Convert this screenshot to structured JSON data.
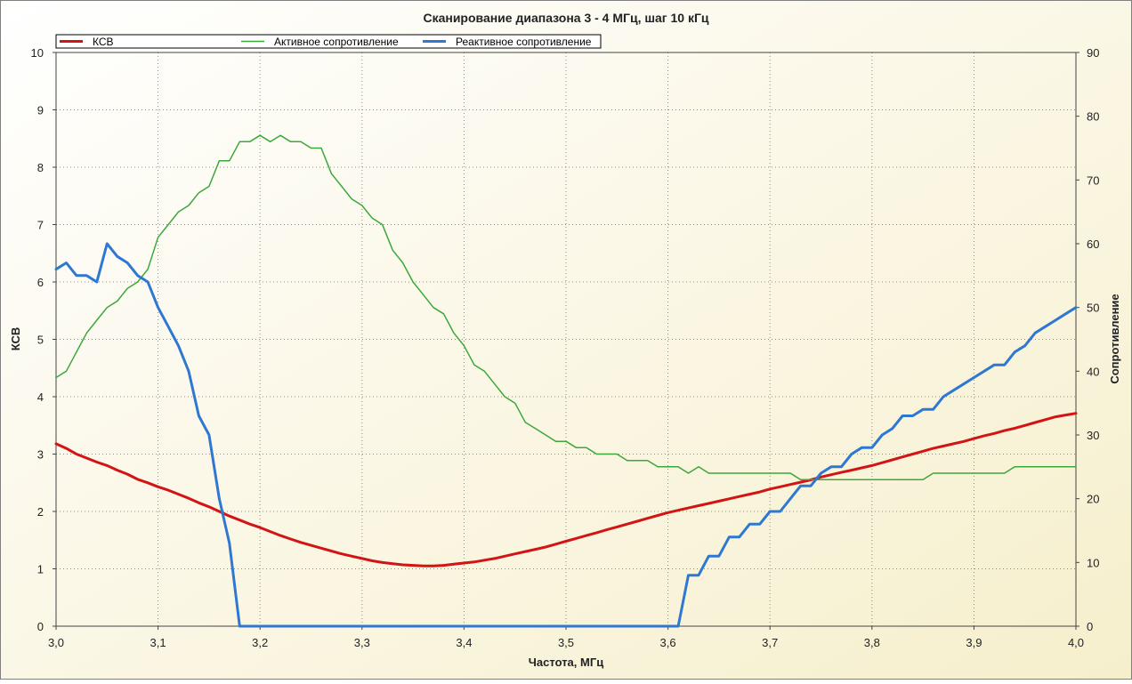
{
  "colors": {
    "bg_start": "#ffffff",
    "bg_end": "#f6efcc",
    "grid": "#8c8c8c",
    "swr": "#d21414",
    "active": "#3aa83a",
    "reactive": "#2f78d2"
  },
  "chart_data": {
    "type": "line",
    "title": "Сканирование диапазона 3 - 4 МГц, шаг 10 кГц",
    "xlabel": "Частота, МГц",
    "ylabel_left": "КСВ",
    "ylabel_right": "Сопротивление",
    "xlim": [
      3.0,
      4.0
    ],
    "ylim_left": [
      0,
      10
    ],
    "ylim_right": [
      0,
      90
    ],
    "x_ticks": [
      "3,0",
      "3,1",
      "3,2",
      "3,3",
      "3,4",
      "3,5",
      "3,6",
      "3,7",
      "3,8",
      "3,9",
      "4,0"
    ],
    "y_left_ticks": [
      "0",
      "1",
      "2",
      "3",
      "4",
      "5",
      "6",
      "7",
      "8",
      "9",
      "10"
    ],
    "y_right_ticks": [
      "0",
      "10",
      "20",
      "30",
      "40",
      "50",
      "60",
      "70",
      "80",
      "90"
    ],
    "grid": true,
    "legend_position": "top",
    "series": [
      {
        "name": "КСВ",
        "axis": "left",
        "x": [
          3.0,
          3.01,
          3.02,
          3.03,
          3.04,
          3.05,
          3.06,
          3.07,
          3.08,
          3.09,
          3.1,
          3.11,
          3.12,
          3.13,
          3.14,
          3.15,
          3.16,
          3.17,
          3.18,
          3.19,
          3.2,
          3.21,
          3.22,
          3.23,
          3.24,
          3.25,
          3.26,
          3.27,
          3.28,
          3.29,
          3.3,
          3.31,
          3.32,
          3.33,
          3.34,
          3.35,
          3.36,
          3.37,
          3.38,
          3.39,
          3.4,
          3.41,
          3.42,
          3.43,
          3.44,
          3.45,
          3.46,
          3.47,
          3.48,
          3.49,
          3.5,
          3.51,
          3.52,
          3.53,
          3.54,
          3.55,
          3.56,
          3.57,
          3.58,
          3.59,
          3.6,
          3.61,
          3.62,
          3.63,
          3.64,
          3.65,
          3.66,
          3.67,
          3.68,
          3.69,
          3.7,
          3.71,
          3.72,
          3.73,
          3.74,
          3.75,
          3.76,
          3.77,
          3.78,
          3.79,
          3.8,
          3.81,
          3.82,
          3.83,
          3.84,
          3.85,
          3.86,
          3.87,
          3.88,
          3.89,
          3.9,
          3.91,
          3.92,
          3.93,
          3.94,
          3.95,
          3.96,
          3.97,
          3.98,
          3.99,
          4.0
        ],
        "y": [
          3.18,
          3.1,
          3.0,
          2.93,
          2.86,
          2.8,
          2.72,
          2.65,
          2.56,
          2.5,
          2.43,
          2.37,
          2.3,
          2.23,
          2.15,
          2.08,
          2.0,
          1.92,
          1.85,
          1.78,
          1.72,
          1.65,
          1.58,
          1.52,
          1.46,
          1.41,
          1.36,
          1.31,
          1.26,
          1.22,
          1.18,
          1.14,
          1.11,
          1.09,
          1.07,
          1.06,
          1.05,
          1.05,
          1.06,
          1.08,
          1.1,
          1.12,
          1.15,
          1.18,
          1.22,
          1.26,
          1.3,
          1.34,
          1.38,
          1.43,
          1.48,
          1.53,
          1.58,
          1.63,
          1.68,
          1.73,
          1.78,
          1.83,
          1.88,
          1.93,
          1.98,
          2.02,
          2.06,
          2.1,
          2.14,
          2.18,
          2.22,
          2.26,
          2.3,
          2.34,
          2.39,
          2.43,
          2.47,
          2.51,
          2.55,
          2.6,
          2.64,
          2.68,
          2.72,
          2.76,
          2.8,
          2.85,
          2.9,
          2.95,
          3.0,
          3.05,
          3.1,
          3.14,
          3.18,
          3.22,
          3.27,
          3.32,
          3.36,
          3.41,
          3.45,
          3.5,
          3.55,
          3.6,
          3.65,
          3.68,
          3.71
        ]
      },
      {
        "name": "Активное сопротивление",
        "axis": "right",
        "x": [
          3.0,
          3.01,
          3.02,
          3.03,
          3.04,
          3.05,
          3.06,
          3.07,
          3.08,
          3.09,
          3.1,
          3.11,
          3.12,
          3.13,
          3.14,
          3.15,
          3.16,
          3.17,
          3.18,
          3.19,
          3.2,
          3.21,
          3.22,
          3.23,
          3.24,
          3.25,
          3.26,
          3.27,
          3.28,
          3.29,
          3.3,
          3.31,
          3.32,
          3.33,
          3.34,
          3.35,
          3.36,
          3.37,
          3.38,
          3.39,
          3.4,
          3.41,
          3.42,
          3.43,
          3.44,
          3.45,
          3.46,
          3.47,
          3.48,
          3.49,
          3.5,
          3.51,
          3.52,
          3.53,
          3.54,
          3.55,
          3.56,
          3.57,
          3.58,
          3.59,
          3.6,
          3.61,
          3.62,
          3.63,
          3.64,
          3.65,
          3.66,
          3.67,
          3.68,
          3.69,
          3.7,
          3.71,
          3.72,
          3.73,
          3.74,
          3.75,
          3.76,
          3.77,
          3.78,
          3.79,
          3.8,
          3.81,
          3.82,
          3.83,
          3.84,
          3.85,
          3.86,
          3.87,
          3.88,
          3.89,
          3.9,
          3.91,
          3.92,
          3.93,
          3.94,
          3.95,
          3.96,
          3.97,
          3.98,
          3.99,
          4.0
        ],
        "y": [
          39,
          40,
          43,
          46,
          48,
          50,
          51,
          53,
          54,
          56,
          61,
          63,
          65,
          66,
          68,
          69,
          73,
          73,
          76,
          76,
          77,
          76,
          77,
          76,
          76,
          75,
          75,
          71,
          69,
          67,
          66,
          64,
          63,
          59,
          57,
          54,
          52,
          50,
          49,
          46,
          44,
          41,
          40,
          38,
          36,
          35,
          32,
          31,
          30,
          29,
          29,
          28,
          28,
          27,
          27,
          27,
          26,
          26,
          26,
          25,
          25,
          25,
          24,
          25,
          24,
          24,
          24,
          24,
          24,
          24,
          24,
          24,
          24,
          23,
          23,
          23,
          23,
          23,
          23,
          23,
          23,
          23,
          23,
          23,
          23,
          23,
          24,
          24,
          24,
          24,
          24,
          24,
          24,
          24,
          25,
          25,
          25,
          25,
          25,
          25,
          25
        ]
      },
      {
        "name": "Реактивное сопротивление",
        "axis": "right",
        "x": [
          3.0,
          3.01,
          3.02,
          3.03,
          3.04,
          3.05,
          3.06,
          3.07,
          3.08,
          3.09,
          3.1,
          3.11,
          3.12,
          3.13,
          3.14,
          3.15,
          3.16,
          3.17,
          3.18,
          3.19,
          3.2,
          3.21,
          3.22,
          3.23,
          3.24,
          3.25,
          3.26,
          3.27,
          3.28,
          3.29,
          3.3,
          3.31,
          3.32,
          3.33,
          3.34,
          3.35,
          3.36,
          3.37,
          3.38,
          3.39,
          3.4,
          3.41,
          3.42,
          3.43,
          3.44,
          3.45,
          3.46,
          3.47,
          3.48,
          3.49,
          3.5,
          3.51,
          3.52,
          3.53,
          3.54,
          3.55,
          3.56,
          3.57,
          3.58,
          3.59,
          3.6,
          3.61,
          3.62,
          3.63,
          3.64,
          3.65,
          3.66,
          3.67,
          3.68,
          3.69,
          3.7,
          3.71,
          3.72,
          3.73,
          3.74,
          3.75,
          3.76,
          3.77,
          3.78,
          3.79,
          3.8,
          3.81,
          3.82,
          3.83,
          3.84,
          3.85,
          3.86,
          3.87,
          3.88,
          3.89,
          3.9,
          3.91,
          3.92,
          3.93,
          3.94,
          3.95,
          3.96,
          3.97,
          3.98,
          3.99,
          4.0
        ],
        "y": [
          56,
          57,
          55,
          55,
          54,
          60,
          58,
          57,
          55,
          54,
          50,
          47,
          44,
          40,
          33,
          30,
          20,
          13,
          0,
          0,
          0,
          0,
          0,
          0,
          0,
          0,
          0,
          0,
          0,
          0,
          0,
          0,
          0,
          0,
          0,
          0,
          0,
          0,
          0,
          0,
          0,
          0,
          0,
          0,
          0,
          0,
          0,
          0,
          0,
          0,
          0,
          0,
          0,
          0,
          0,
          0,
          0,
          0,
          0,
          0,
          0,
          0,
          8,
          8,
          11,
          11,
          14,
          14,
          16,
          16,
          18,
          18,
          20,
          22,
          22,
          24,
          25,
          25,
          27,
          28,
          28,
          30,
          31,
          33,
          33,
          34,
          34,
          36,
          37,
          38,
          39,
          40,
          41,
          41,
          43,
          44,
          46,
          47,
          48,
          49,
          50
        ]
      }
    ]
  }
}
